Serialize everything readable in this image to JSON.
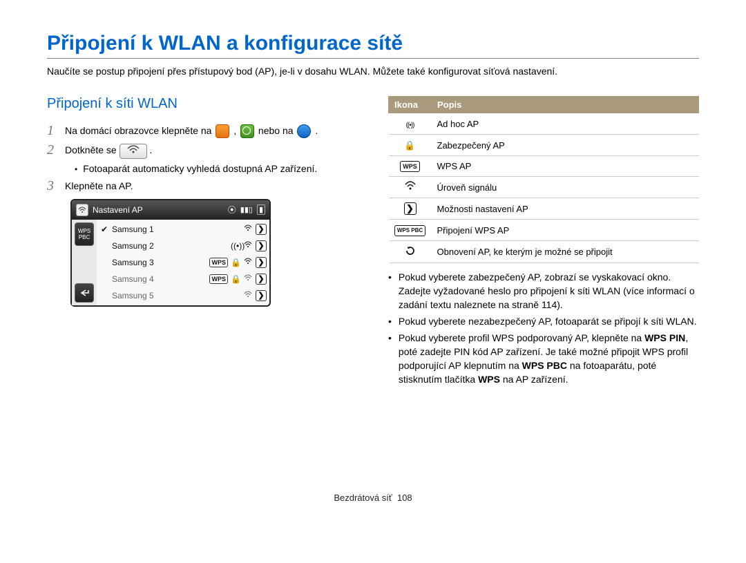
{
  "title": "Připojení k WLAN a konfigurace sítě",
  "intro": "Naučíte se postup připojení přes přístupový bod (AP), je-li v dosahu WLAN. Můžete také konfigurovat síťová nastavení.",
  "sub_heading": "Připojení k síti WLAN",
  "step1_a": "Na domácí obrazovce klepněte na ",
  "step1_b": ", ",
  "step1_c": " nebo na ",
  "step1_end": ".",
  "step2_a": "Dotkněte se ",
  "step2_end": ".",
  "step2_sub": "Fotoaparát automaticky vyhledá dostupná AP zařízení.",
  "step3": "Klepněte na AP.",
  "ap_panel": {
    "title": "Nastavení AP",
    "side_top": "WPS\nPBC",
    "rows": [
      {
        "name": "Samsung 1",
        "check": true,
        "wps": false,
        "lock": false,
        "adhoc": false,
        "signal": true,
        "arrow": true,
        "on": true
      },
      {
        "name": "Samsung 2",
        "check": false,
        "wps": false,
        "lock": false,
        "adhoc": true,
        "signal": true,
        "arrow": true,
        "on": true
      },
      {
        "name": "Samsung 3",
        "check": false,
        "wps": true,
        "lock": true,
        "adhoc": false,
        "signal": true,
        "arrow": true,
        "on": true
      },
      {
        "name": "Samsung 4",
        "check": false,
        "wps": true,
        "lock": true,
        "adhoc": false,
        "signal": true,
        "arrow": true,
        "on": false
      },
      {
        "name": "Samsung 5",
        "check": false,
        "wps": false,
        "lock": false,
        "adhoc": false,
        "signal": true,
        "arrow": true,
        "on": false
      }
    ]
  },
  "table": {
    "header_icon": "Ikona",
    "header_desc": "Popis",
    "rows": [
      {
        "icon": "adhoc",
        "desc": "Ad hoc AP"
      },
      {
        "icon": "lock",
        "desc": "Zabezpečený AP"
      },
      {
        "icon": "wps",
        "desc": "WPS AP"
      },
      {
        "icon": "wifi",
        "desc": "Úroveň signálu"
      },
      {
        "icon": "arrow",
        "desc": "Možnosti nastavení AP"
      },
      {
        "icon": "wpspbc",
        "desc": "Připojení WPS AP"
      },
      {
        "icon": "refresh",
        "desc": "Obnovení AP, ke kterým je možné se připojit"
      }
    ]
  },
  "right_bullets": [
    "Pokud vyberete zabezpečený AP, zobrazí se vyskakovací okno. Zadejte vyžadované heslo pro připojení k síti WLAN (více informací o zadání textu naleznete na straně 114).",
    "Pokud vyberete nezabezpečený AP, fotoaparát se připojí k síti WLAN.",
    "Pokud vyberete profil WPS podporovaný AP, klepněte na WPS PIN, poté zadejte PIN kód AP zařízení. Je také možné připojit WPS profil podporující AP klepnutím na WPS PBC na fotoaparátu, poté stisknutím tlačítka WPS na AP zařízení."
  ],
  "footer_a": "Bezdrátová síť",
  "footer_b": "108"
}
